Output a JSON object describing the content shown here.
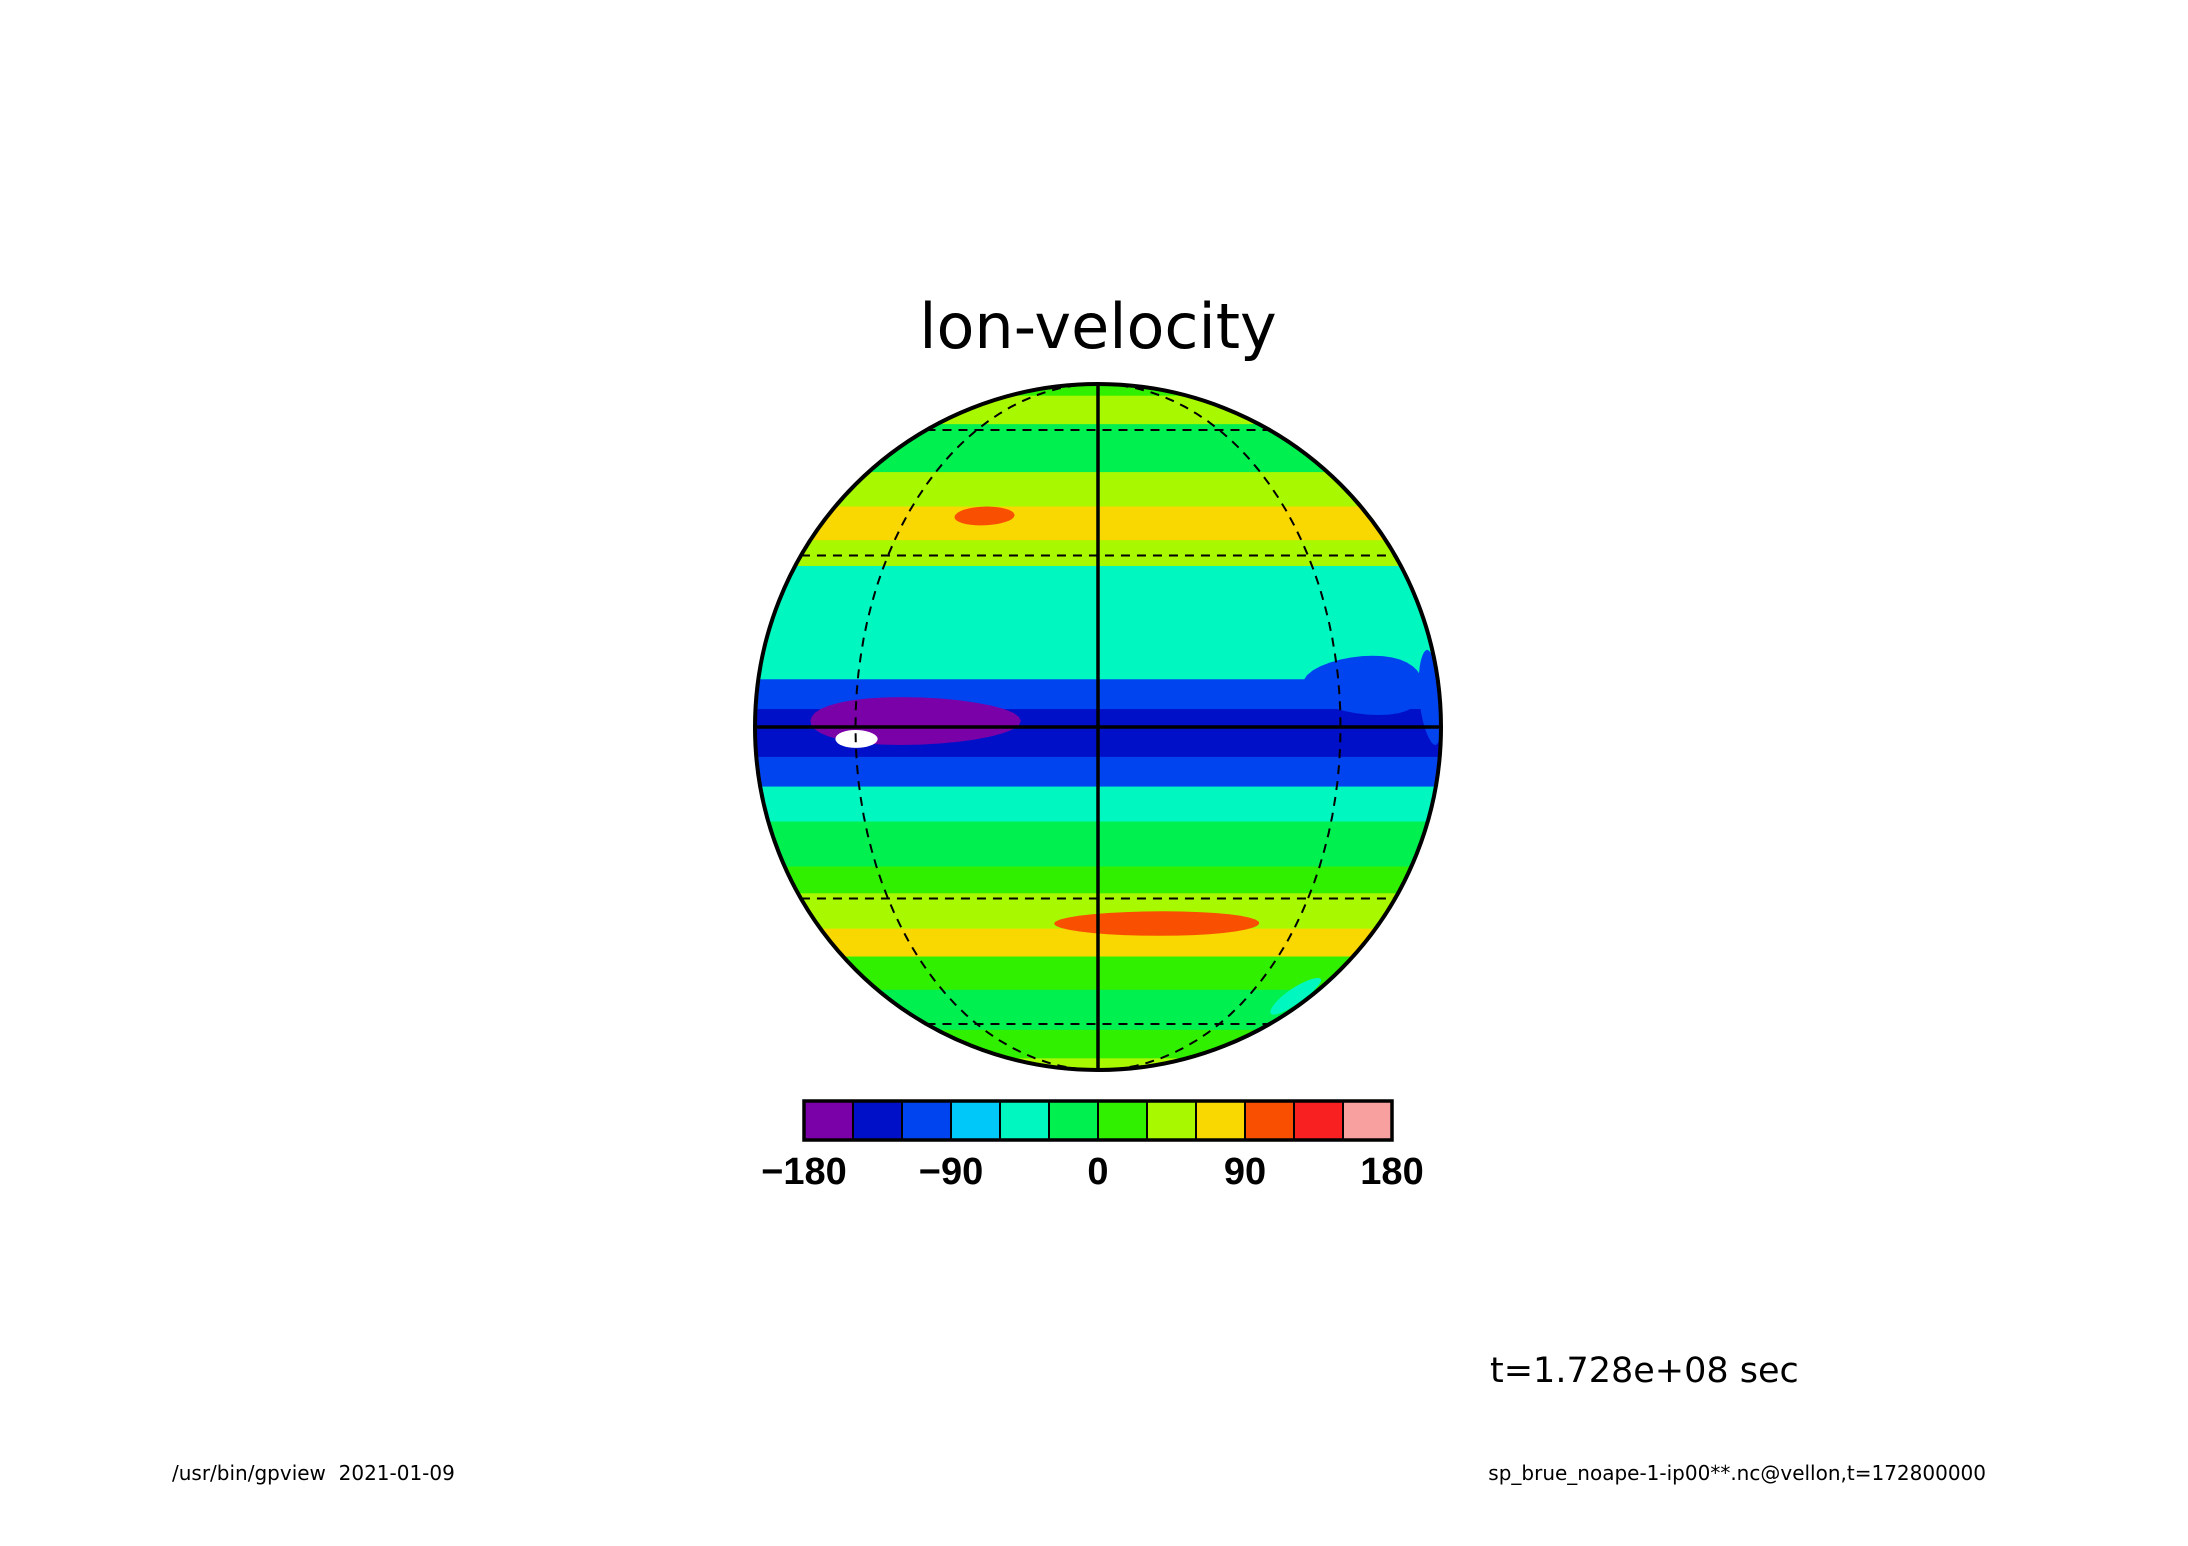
{
  "chart_data": {
    "type": "heatmap",
    "projection": "orthographic",
    "title": "lon-velocity",
    "xlabel": "",
    "ylabel": "",
    "colorbar": {
      "range": [
        -180,
        180
      ],
      "step": 30,
      "colors": [
        "#7a00a8",
        "#0010c8",
        "#0044f0",
        "#00c8f8",
        "#00f8c0",
        "#00f050",
        "#30f000",
        "#a8f800",
        "#f8d800",
        "#f85000",
        "#f82020",
        "#f8a0a0"
      ],
      "tick_labels": [
        {
          "value": -180,
          "label": "−180"
        },
        {
          "value": -90,
          "label": "−90"
        },
        {
          "value": 0,
          "label": "0"
        },
        {
          "value": 90,
          "label": "90"
        },
        {
          "value": 180,
          "label": "180"
        }
      ]
    },
    "graticule": {
      "latitudes": [
        -60,
        -30,
        0,
        30,
        60
      ],
      "meridians": [
        -90,
        -45,
        0,
        45,
        90
      ],
      "solid": [
        "equator",
        "central-meridian"
      ]
    },
    "zonal_bands": [
      {
        "lat": [
          75,
          90
        ],
        "value": 5
      },
      {
        "lat": [
          62,
          75
        ],
        "value": 30
      },
      {
        "lat": [
          48,
          62
        ],
        "value": -25
      },
      {
        "lat": [
          40,
          48
        ],
        "value": 30
      },
      {
        "lat": [
          33,
          40
        ],
        "value": 70
      },
      {
        "lat": [
          28,
          33
        ],
        "value": 40
      },
      {
        "lat": [
          18,
          28
        ],
        "value": -35
      },
      {
        "lat": [
          8,
          18
        ],
        "value": -60
      },
      {
        "lat": [
          3,
          8
        ],
        "value": -95
      },
      {
        "lat": [
          -5,
          3
        ],
        "value": -130
      },
      {
        "lat": [
          -10,
          -5
        ],
        "value": -95
      },
      {
        "lat": [
          -16,
          -10
        ],
        "value": -60
      },
      {
        "lat": [
          -24,
          -16
        ],
        "value": -30
      },
      {
        "lat": [
          -29,
          -24
        ],
        "value": 20
      },
      {
        "lat": [
          -36,
          -29
        ],
        "value": 50
      },
      {
        "lat": [
          -42,
          -36
        ],
        "value": 75
      },
      {
        "lat": [
          -50,
          -42
        ],
        "value": 20
      },
      {
        "lat": [
          -62,
          -50
        ],
        "value": -30
      },
      {
        "lat": [
          -75,
          -62
        ],
        "value": 20
      },
      {
        "lat": [
          -90,
          -75
        ],
        "value": 45
      }
    ],
    "features": [
      {
        "lon": -35,
        "lat": 1,
        "dlon": 22,
        "dlat": 4,
        "value": -165
      },
      {
        "lon": -45,
        "lat": -2,
        "dlon": 5,
        "dlat": 1.5,
        "value": -185
      },
      {
        "lon": -25,
        "lat": 38,
        "dlon": 7,
        "dlat": 2,
        "value": 100
      },
      {
        "lon": 13,
        "lat": -35,
        "dlon": 22,
        "dlat": 2.5,
        "value": 100
      },
      {
        "lon": 55,
        "lat": 7,
        "dlon": 18,
        "dlat": 5,
        "value": -100
      },
      {
        "lon": 80,
        "lat": 5,
        "dlon": 10,
        "dlat": 8,
        "value": -95
      },
      {
        "lon": 70,
        "lat": -52,
        "dlon": 10,
        "dlat": 5,
        "value": -60
      }
    ]
  },
  "annotations": {
    "time_label": "t=1.728e+08 sec",
    "footer_left": "/usr/bin/gpview  2021-01-09",
    "footer_right": "sp_brue_noape-1-ip00**.nc@vellon,t=172800000"
  }
}
